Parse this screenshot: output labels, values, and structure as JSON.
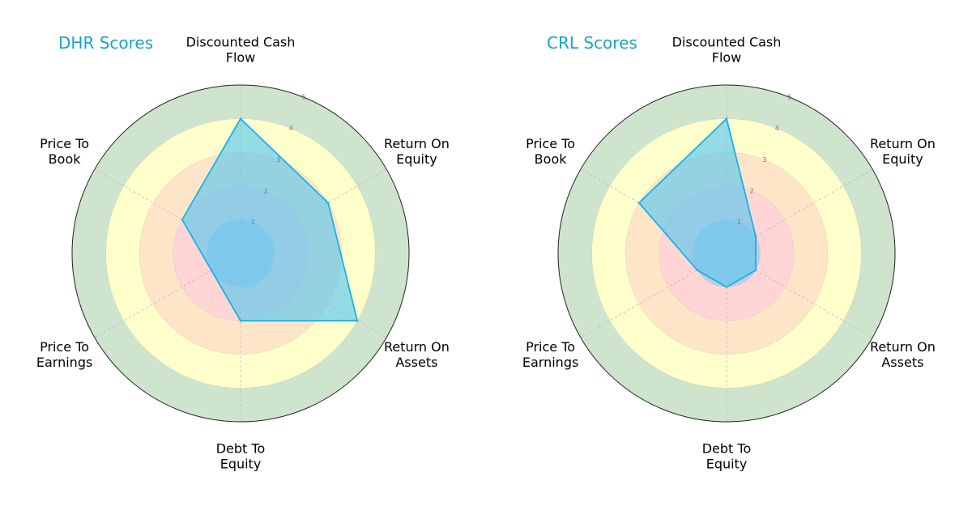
{
  "chart_data": [
    {
      "type": "radar",
      "title": "DHR Scores",
      "axes": [
        [
          "Discounted Cash",
          "Flow"
        ],
        [
          "Return On",
          "Equity"
        ],
        [
          "Return On",
          "Assets"
        ],
        [
          "Debt To",
          "Equity"
        ],
        [
          "Price To",
          "Earnings"
        ],
        [
          "Price To",
          "Book"
        ]
      ],
      "rlim": [
        0,
        5
      ],
      "r_ticks": [
        1,
        2,
        3,
        4,
        5
      ],
      "series": [
        {
          "values": [
            4,
            3,
            4,
            2,
            1,
            2
          ]
        }
      ]
    },
    {
      "type": "radar",
      "title": "CRL Scores",
      "axes": [
        [
          "Discounted Cash",
          "Flow"
        ],
        [
          "Return On",
          "Equity"
        ],
        [
          "Return On",
          "Assets"
        ],
        [
          "Debt To",
          "Equity"
        ],
        [
          "Price To",
          "Earnings"
        ],
        [
          "Price To",
          "Book"
        ]
      ],
      "rlim": [
        0,
        5
      ],
      "r_ticks": [
        1,
        2,
        3,
        4,
        5
      ],
      "series": [
        {
          "values": [
            4,
            1,
            1,
            1,
            1,
            3
          ]
        }
      ]
    }
  ],
  "style": {
    "title_color": "#1aa3c8",
    "series_fill": "#5bc8f0",
    "series_stroke": "#1ab0e8",
    "band_colors": [
      "#a9c8e8",
      "#ffd5d5",
      "#ffe5c8",
      "#ffffcc",
      "#cfe4cc"
    ],
    "outline_color": "#222222",
    "grid_color": "#bbbbbb"
  }
}
